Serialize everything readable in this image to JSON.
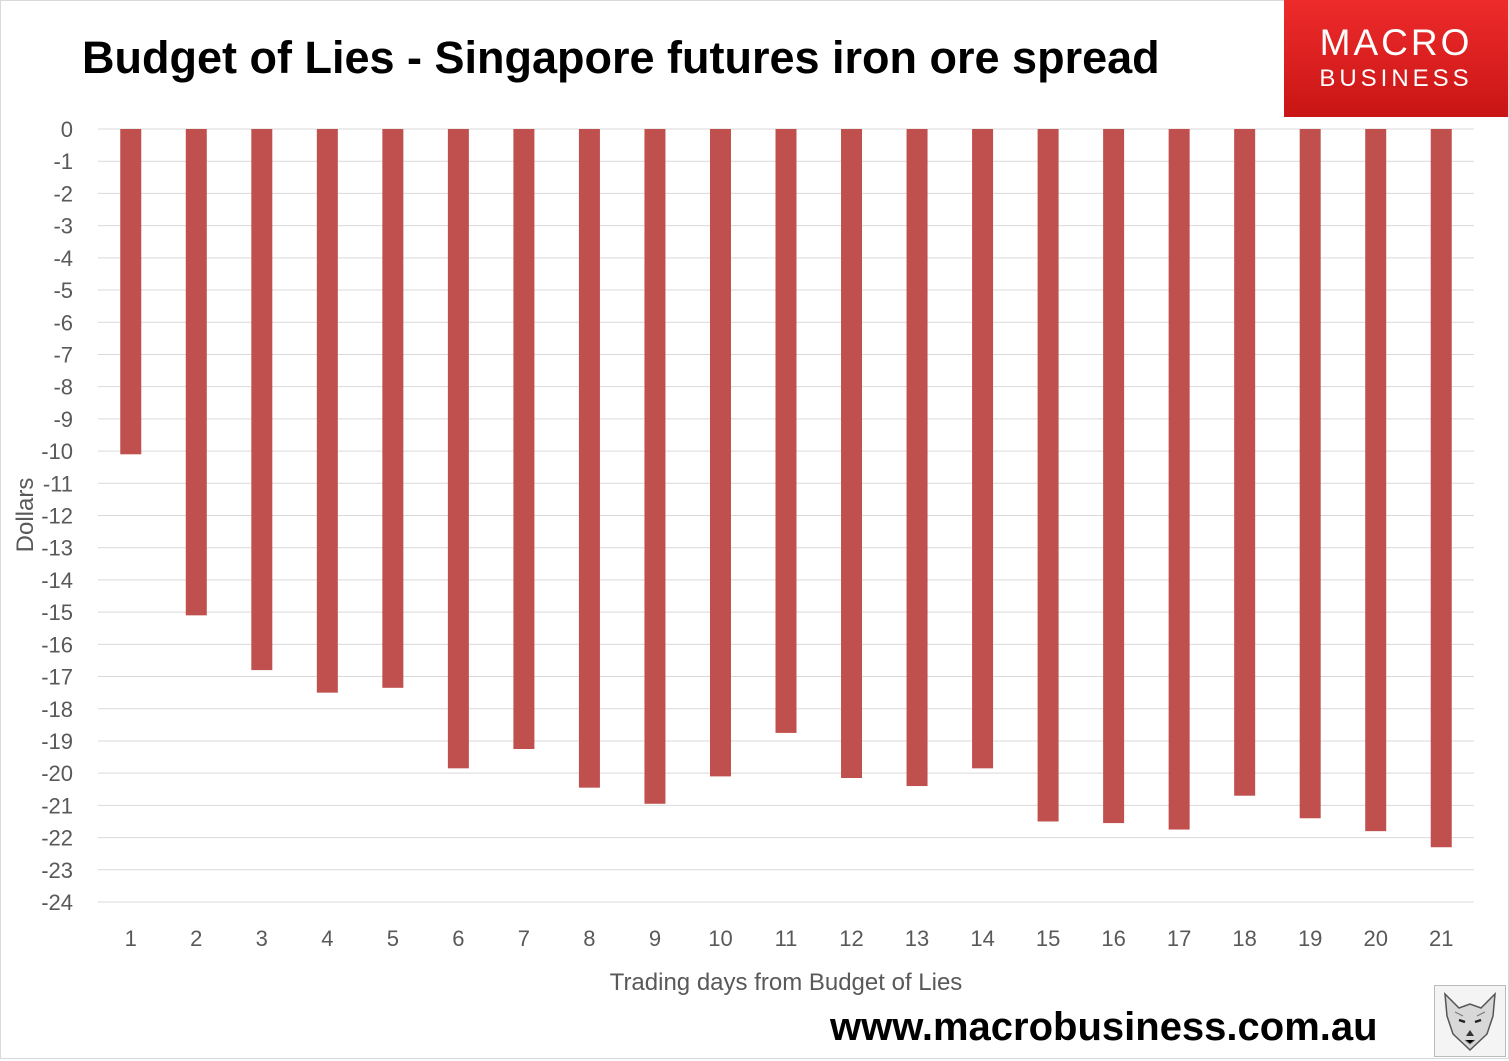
{
  "chart_data": {
    "type": "bar",
    "title": "Budget of Lies - Singapore futures iron ore spread",
    "xlabel": "Trading days from Budget of Lies",
    "ylabel": "Dollars",
    "categories": [
      "1",
      "2",
      "3",
      "4",
      "5",
      "6",
      "7",
      "8",
      "9",
      "10",
      "11",
      "12",
      "13",
      "14",
      "15",
      "16",
      "17",
      "18",
      "19",
      "20",
      "21"
    ],
    "values": [
      -10.1,
      -15.1,
      -16.8,
      -17.5,
      -17.35,
      -19.85,
      -19.25,
      -20.45,
      -20.95,
      -20.1,
      -18.75,
      -20.15,
      -20.4,
      -19.85,
      -21.5,
      -21.55,
      -21.75,
      -20.7,
      -21.4,
      -21.8,
      -22.3
    ],
    "ylim": [
      -24,
      0
    ],
    "yticks": [
      0,
      -1,
      -2,
      -3,
      -4,
      -5,
      -6,
      -7,
      -8,
      -9,
      -10,
      -11,
      -12,
      -13,
      -14,
      -15,
      -16,
      -17,
      -18,
      -19,
      -20,
      -21,
      -22,
      -23,
      -24
    ],
    "grid": true,
    "legend": "none",
    "bar_color": "#c0504d"
  },
  "branding": {
    "logo_line1": "MACRO",
    "logo_line2": "BUSINESS",
    "website": "www.macrobusiness.com.au",
    "mascot_icon": "wolf-icon"
  },
  "colors": {
    "logo_red": "#e02020",
    "gridline": "#d9d9d9",
    "axis_text": "#595959"
  }
}
